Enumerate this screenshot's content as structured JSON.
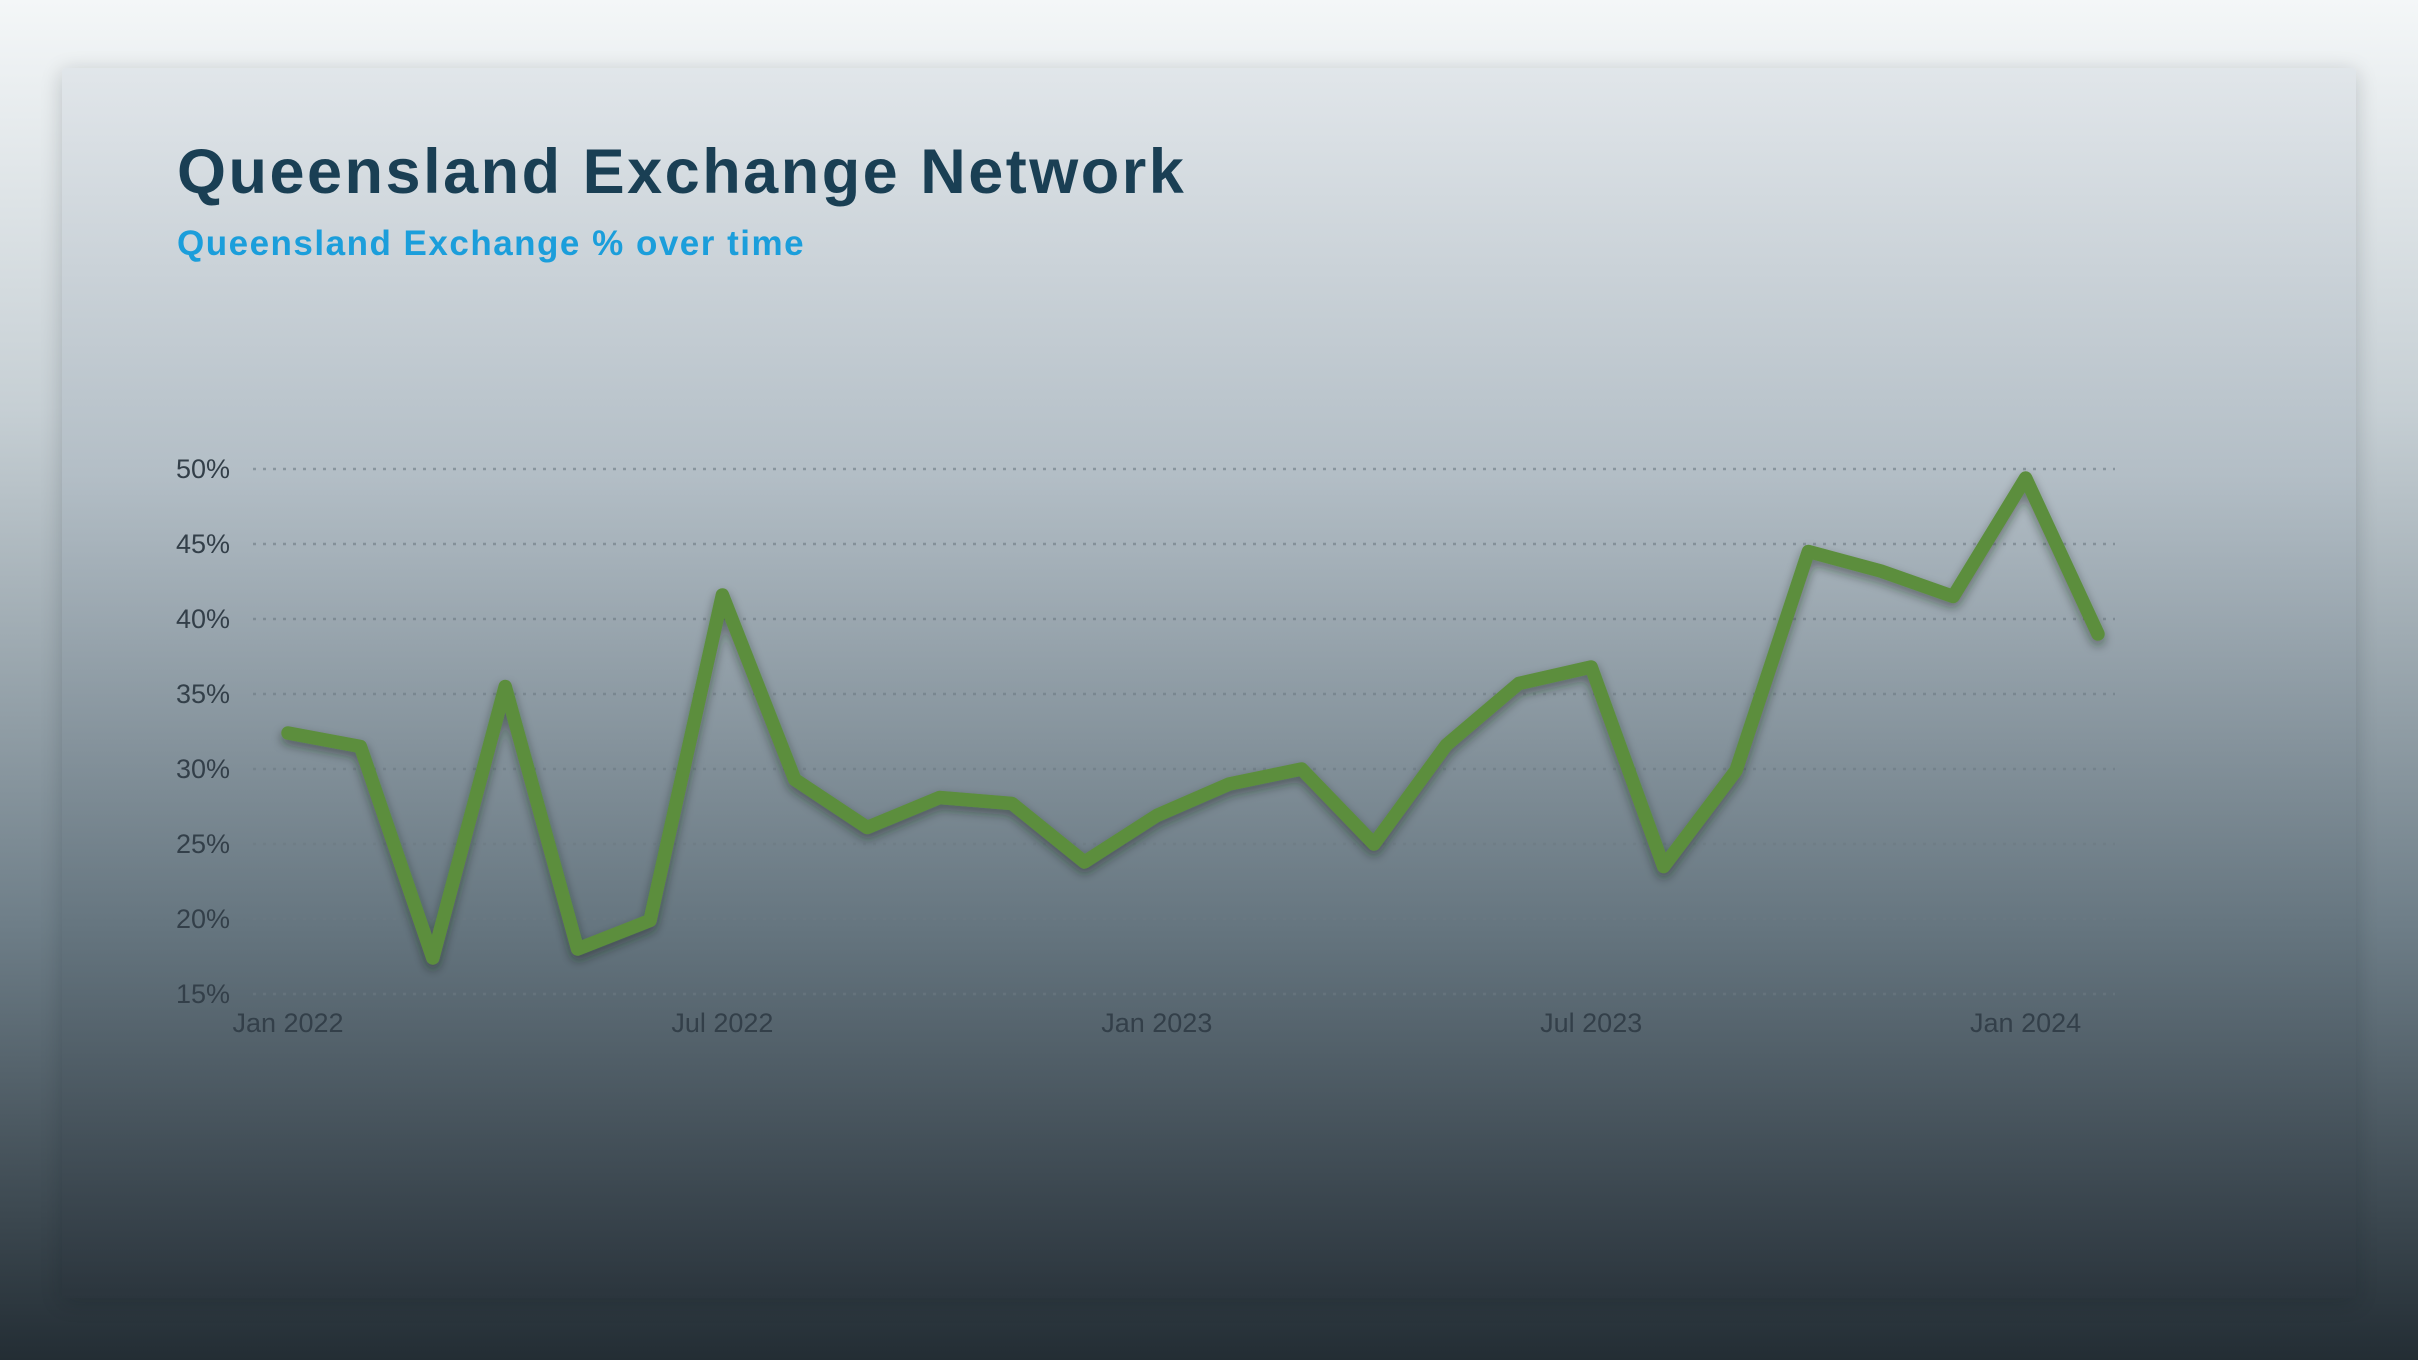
{
  "page": {
    "title": "Queensland Exchange Network",
    "subtitle": "Queensland Exchange % over time"
  },
  "colors": {
    "title_navy": "#1a3f54",
    "subtitle_blue": "#1b9edb",
    "line_green": "#5b8e3e",
    "axis_label": "#333f49",
    "gridline": "#6d7a83"
  },
  "chart_data": {
    "type": "line",
    "title": "Queensland Exchange % over time",
    "xlabel": "",
    "ylabel": "Queensland Exchange %",
    "grid": "horizontal dotted",
    "legend": "none",
    "ylim": [
      15,
      50
    ],
    "y_ticks": [
      50,
      45,
      40,
      35,
      30,
      25,
      20,
      15
    ],
    "y_tick_suffix": "%",
    "x": [
      "Jan 2022",
      "Feb 2022",
      "Mar 2022",
      "Apr 2022",
      "May 2022",
      "Jun 2022",
      "Jul 2022",
      "Aug 2022",
      "Sep 2022",
      "Oct 2022",
      "Nov 2022",
      "Dec 2022",
      "Jan 2023",
      "Feb 2023",
      "Mar 2023",
      "Apr 2023",
      "May 2023",
      "Jun 2023",
      "Jul 2023",
      "Aug 2023",
      "Sep 2023",
      "Oct 2023",
      "Nov 2023",
      "Dec 2023",
      "Jan 2024",
      "Feb 2024"
    ],
    "values": [
      32.4,
      31.5,
      17.4,
      35.5,
      18.0,
      19.9,
      41.6,
      29.3,
      26.1,
      28.1,
      27.7,
      23.8,
      26.9,
      29.0,
      30.0,
      25.0,
      31.6,
      35.7,
      36.8,
      23.5,
      29.9,
      44.5,
      43.2,
      41.5,
      49.4,
      39.0
    ],
    "x_tick_labels": [
      "Jan 2022",
      "Jul 2022",
      "Jan 2023",
      "Jul 2023",
      "Jan 2024"
    ],
    "x_tick_indices": [
      0,
      6,
      12,
      18,
      24
    ]
  }
}
